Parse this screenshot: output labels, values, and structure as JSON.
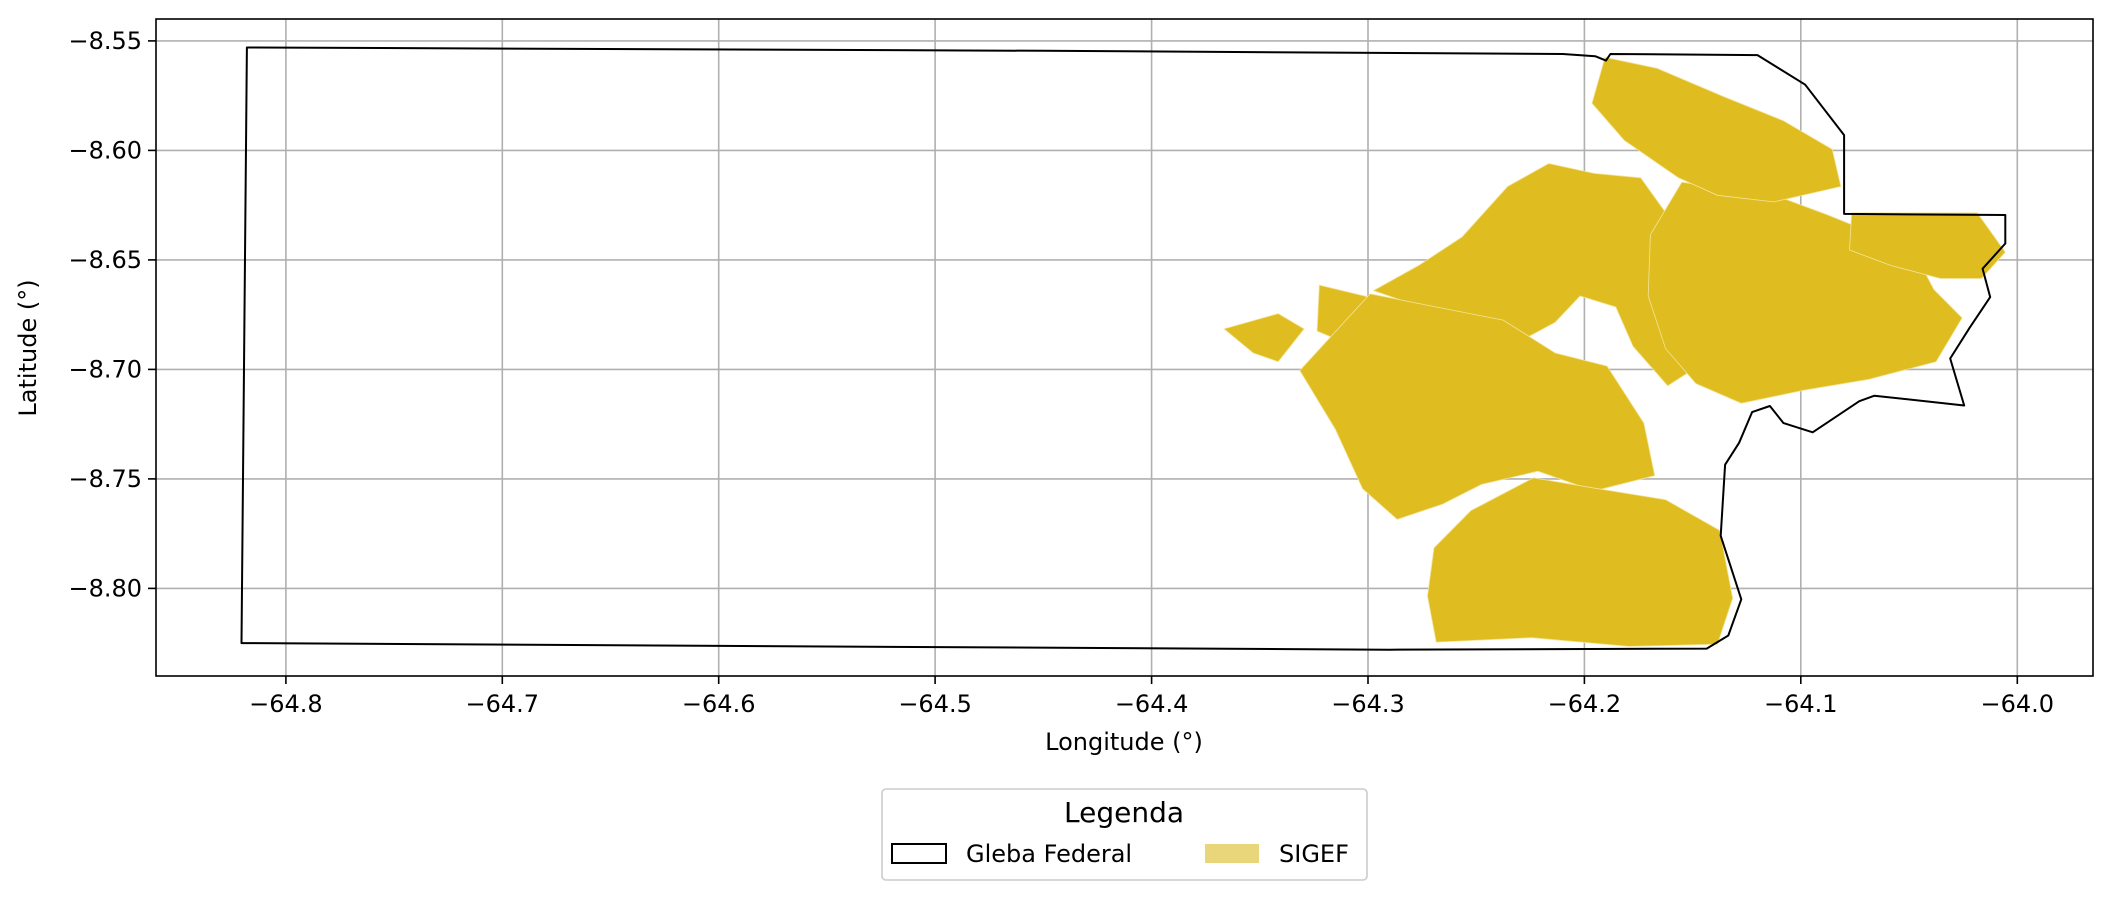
{
  "chart_data": {
    "type": "map",
    "xlabel": "Longitude (°)",
    "ylabel": "Latitude (°)",
    "xlim": [
      -64.86,
      -63.965
    ],
    "ylim": [
      -8.84,
      -8.54
    ],
    "xticks": [
      -64.8,
      -64.7,
      -64.6,
      -64.5,
      -64.4,
      -64.3,
      -64.2,
      -64.1,
      -64.0
    ],
    "yticks": [
      -8.55,
      -8.6,
      -8.65,
      -8.7,
      -8.75,
      -8.8
    ],
    "xtick_labels": [
      "−64.8",
      "−64.7",
      "−64.6",
      "−64.5",
      "−64.4",
      "−64.3",
      "−64.2",
      "−64.1",
      "−64.0"
    ],
    "ytick_labels": [
      "−8.55",
      "−8.60",
      "−8.65",
      "−8.70",
      "−8.75",
      "−8.80"
    ],
    "grid": true,
    "colors": {
      "gleba_edge": "#000000",
      "sigef_fill": "#dfbd20",
      "legend_sigef": "#e9d67a",
      "grid": "#b0b0b0"
    },
    "legend": {
      "title": "Legenda",
      "placement": "bottom-center",
      "entries": [
        {
          "label": "Gleba Federal",
          "style": "outline"
        },
        {
          "label": "SIGEF",
          "style": "fill"
        }
      ]
    },
    "gleba_federal": [
      [
        -64.818,
        -8.553
      ],
      [
        -64.45,
        -8.5545
      ],
      [
        -64.21,
        -8.556
      ],
      [
        -64.195,
        -8.557
      ],
      [
        -64.19,
        -8.559
      ],
      [
        -64.188,
        -8.556
      ],
      [
        -64.12,
        -8.5565
      ],
      [
        -64.098,
        -8.57
      ],
      [
        -64.08,
        -8.593
      ],
      [
        -64.08,
        -8.629
      ],
      [
        -64.0055,
        -8.6295
      ],
      [
        -64.0055,
        -8.6425
      ],
      [
        -64.016,
        -8.654
      ],
      [
        -64.0125,
        -8.667
      ],
      [
        -64.022,
        -8.681
      ],
      [
        -64.031,
        -8.695
      ],
      [
        -64.0245,
        -8.7165
      ],
      [
        -64.066,
        -8.712
      ],
      [
        -64.073,
        -8.7145
      ],
      [
        -64.0945,
        -8.7287
      ],
      [
        -64.108,
        -8.7245
      ],
      [
        -64.1143,
        -8.7167
      ],
      [
        -64.1225,
        -8.7195
      ],
      [
        -64.1285,
        -8.7335
      ],
      [
        -64.135,
        -8.7435
      ],
      [
        -64.137,
        -8.776
      ],
      [
        -64.1275,
        -8.805
      ],
      [
        -64.1335,
        -8.8215
      ],
      [
        -64.1435,
        -8.8275
      ],
      [
        -64.29,
        -8.828
      ],
      [
        -64.8205,
        -8.825
      ],
      [
        -64.818,
        -8.553
      ]
    ],
    "sigef": [
      [
        [
          -64.2975,
          -8.664
        ],
        [
          -64.2765,
          -8.6525
        ],
        [
          -64.2565,
          -8.6395
        ],
        [
          -64.2355,
          -8.6165
        ],
        [
          -64.2165,
          -8.606
        ],
        [
          -64.1955,
          -8.6105
        ],
        [
          -64.174,
          -8.6125
        ],
        [
          -64.158,
          -8.6345
        ],
        [
          -64.14,
          -8.6545
        ],
        [
          -64.1535,
          -8.678
        ],
        [
          -64.1505,
          -8.7005
        ],
        [
          -64.1615,
          -8.7075
        ],
        [
          -64.1775,
          -8.6895
        ],
        [
          -64.1855,
          -8.6715
        ],
        [
          -64.202,
          -8.6665
        ],
        [
          -64.2135,
          -8.6785
        ],
        [
          -64.2285,
          -8.6865
        ],
        [
          -64.2495,
          -8.6775
        ],
        [
          -64.2785,
          -8.6705
        ]
      ],
      [
        [
          -64.2805,
          -8.6715
        ],
        [
          -64.3225,
          -8.6615
        ],
        [
          -64.3235,
          -8.6825
        ],
        [
          -64.3065,
          -8.6895
        ],
        [
          -64.286,
          -8.6825
        ]
      ],
      [
        [
          -64.3315,
          -8.7005
        ],
        [
          -64.299,
          -8.6655
        ],
        [
          -64.2685,
          -8.6715
        ],
        [
          -64.2375,
          -8.6775
        ],
        [
          -64.2135,
          -8.6925
        ],
        [
          -64.1895,
          -8.6985
        ],
        [
          -64.1725,
          -8.7245
        ],
        [
          -64.1675,
          -8.7485
        ],
        [
          -64.1955,
          -8.7555
        ],
        [
          -64.2215,
          -8.7465
        ],
        [
          -64.2475,
          -8.7525
        ],
        [
          -64.2655,
          -8.7615
        ],
        [
          -64.2865,
          -8.7685
        ],
        [
          -64.3025,
          -8.7545
        ],
        [
          -64.315,
          -8.7275
        ]
      ],
      [
        [
          -64.3665,
          -8.6815
        ],
        [
          -64.3415,
          -8.6745
        ],
        [
          -64.3295,
          -8.6815
        ],
        [
          -64.3415,
          -8.6965
        ],
        [
          -64.353,
          -8.6925
        ]
      ],
      [
        [
          -64.2525,
          -8.7645
        ],
        [
          -64.2235,
          -8.7495
        ],
        [
          -64.1935,
          -8.7545
        ],
        [
          -64.1625,
          -8.7595
        ],
        [
          -64.1375,
          -8.7735
        ],
        [
          -64.1315,
          -8.8045
        ],
        [
          -64.1385,
          -8.8255
        ],
        [
          -64.1795,
          -8.8265
        ],
        [
          -64.2245,
          -8.8225
        ],
        [
          -64.2685,
          -8.8245
        ],
        [
          -64.2725,
          -8.8035
        ],
        [
          -64.2695,
          -8.7815
        ]
      ],
      [
        [
          -64.155,
          -8.6145
        ],
        [
          -64.112,
          -8.6205
        ],
        [
          -64.0875,
          -8.6295
        ],
        [
          -64.065,
          -8.6385
        ],
        [
          -64.0465,
          -8.6485
        ],
        [
          -64.0385,
          -8.6635
        ],
        [
          -64.0255,
          -8.6765
        ],
        [
          -64.0375,
          -8.6965
        ],
        [
          -64.0685,
          -8.7045
        ],
        [
          -64.0985,
          -8.7095
        ],
        [
          -64.1275,
          -8.7155
        ],
        [
          -64.1485,
          -8.7065
        ],
        [
          -64.1625,
          -8.6905
        ],
        [
          -64.1705,
          -8.6665
        ],
        [
          -64.1695,
          -8.6385
        ]
      ],
      [
        [
          -64.1905,
          -8.5575
        ],
        [
          -64.1665,
          -8.5625
        ],
        [
          -64.1355,
          -8.5755
        ],
        [
          -64.108,
          -8.5865
        ],
        [
          -64.0855,
          -8.5995
        ],
        [
          -64.0815,
          -8.6165
        ],
        [
          -64.1125,
          -8.6235
        ],
        [
          -64.1385,
          -8.6205
        ],
        [
          -64.1565,
          -8.6125
        ],
        [
          -64.1815,
          -8.5955
        ],
        [
          -64.1965,
          -8.5785
        ]
      ],
      [
        [
          -64.0765,
          -8.6285
        ],
        [
          -64.0185,
          -8.6285
        ],
        [
          -64.0055,
          -8.6465
        ],
        [
          -64.0165,
          -8.6585
        ],
        [
          -64.0355,
          -8.6585
        ],
        [
          -64.0585,
          -8.6525
        ],
        [
          -64.0775,
          -8.6455
        ]
      ]
    ]
  }
}
